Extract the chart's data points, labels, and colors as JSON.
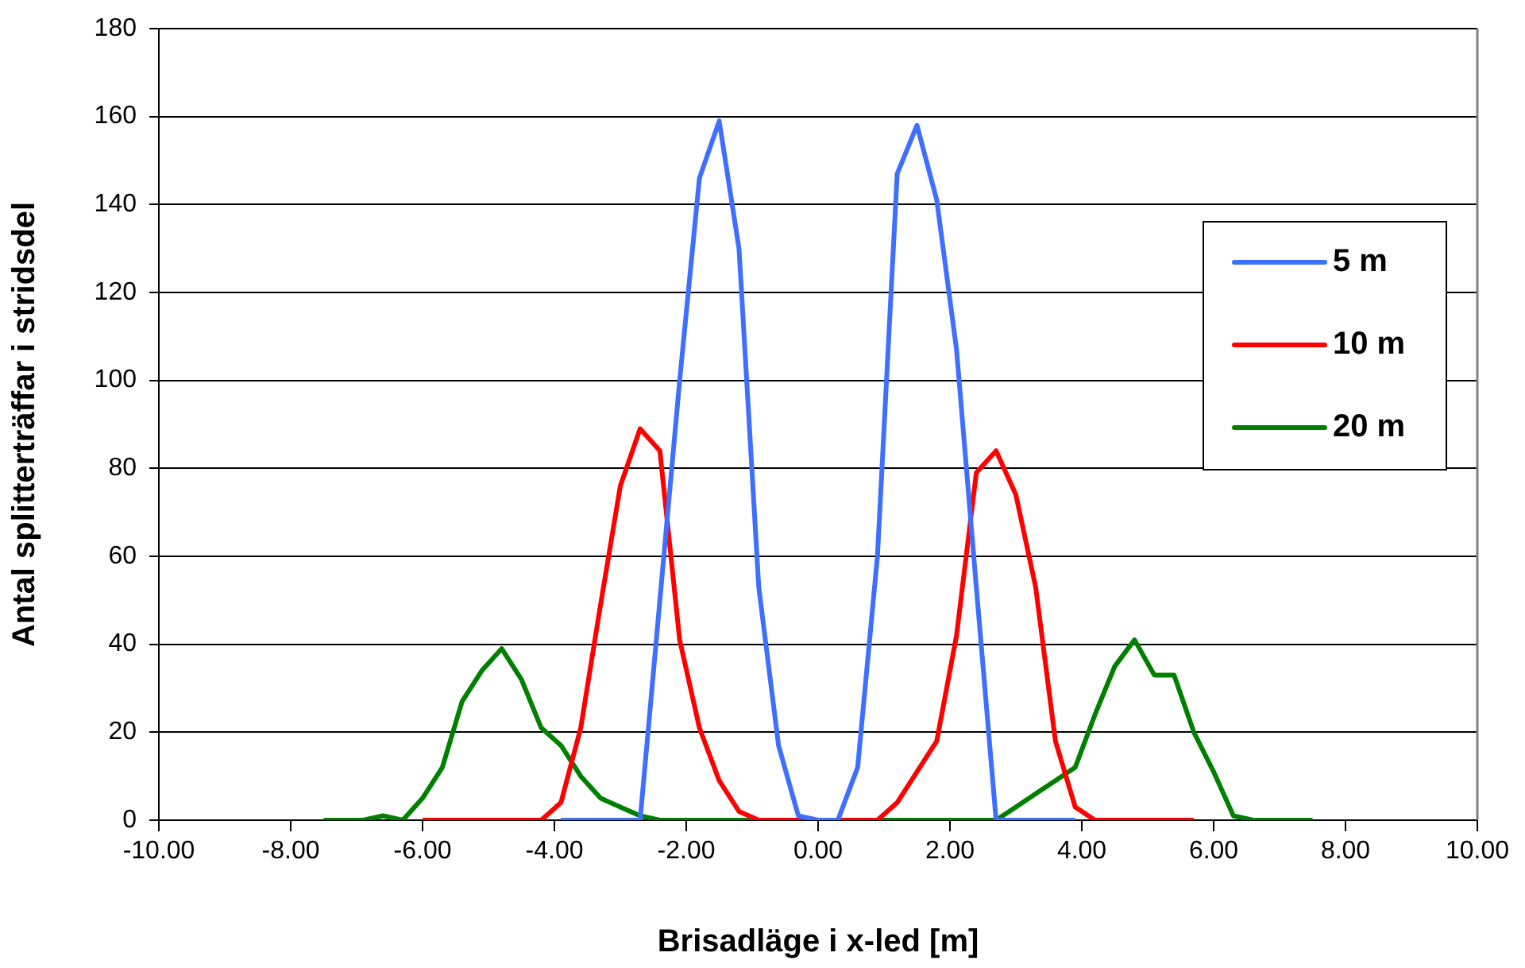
{
  "chart_data": {
    "type": "line",
    "xlabel": "Brisadläge i x-led [m]",
    "ylabel": "Antal splitterträffar i stridsdel",
    "xlim": [
      -10,
      10
    ],
    "xticks": [
      {
        "value": -10,
        "label": "-10.00"
      },
      {
        "value": -8,
        "label": "-8.00"
      },
      {
        "value": -6,
        "label": "-6.00"
      },
      {
        "value": -4,
        "label": "-4.00"
      },
      {
        "value": -2,
        "label": "-2.00"
      },
      {
        "value": 0,
        "label": "0.00"
      },
      {
        "value": 2,
        "label": "2.00"
      },
      {
        "value": 4,
        "label": "4.00"
      },
      {
        "value": 6,
        "label": "6.00"
      },
      {
        "value": 8,
        "label": "8.00"
      },
      {
        "value": 10,
        "label": "10.00"
      }
    ],
    "ylim": [
      0,
      180
    ],
    "yticks": [
      0,
      20,
      40,
      60,
      80,
      100,
      120,
      140,
      160,
      180
    ],
    "grid": "y",
    "legend": "right",
    "marker": "none",
    "line_style": "solid",
    "series": [
      {
        "name": "5 m",
        "color": "#3f6fff",
        "x": [
          -3.9,
          -3.6,
          -3.3,
          -3.0,
          -2.7,
          -2.4,
          -2.1,
          -1.8,
          -1.5,
          -1.2,
          -0.9,
          -0.6,
          -0.3,
          0,
          0.3,
          0.6,
          0.9,
          1.2,
          1.5,
          1.8,
          2.1,
          2.4,
          2.7,
          3.0,
          3.3,
          3.6,
          3.9
        ],
        "values": [
          0,
          0,
          0,
          0,
          0,
          50,
          100,
          146,
          159,
          130,
          53,
          17,
          1,
          0,
          0,
          12,
          60,
          147,
          158,
          141,
          107,
          53,
          0,
          0,
          0,
          0,
          0
        ]
      },
      {
        "name": "10 m",
        "color": "#ff0000",
        "x": [
          -6.0,
          -5.7,
          -5.4,
          -5.1,
          -4.8,
          -4.5,
          -4.2,
          -3.9,
          -3.6,
          -3.3,
          -3.0,
          -2.7,
          -2.4,
          -2.1,
          -1.8,
          -1.5,
          -1.2,
          -0.9,
          -0.6,
          -0.3,
          0,
          0.3,
          0.6,
          0.9,
          1.2,
          1.5,
          1.8,
          2.1,
          2.4,
          2.7,
          3.0,
          3.3,
          3.6,
          3.9,
          4.2,
          4.5,
          4.8,
          5.1,
          5.4,
          5.7
        ],
        "values": [
          0,
          0,
          0,
          0,
          0,
          0,
          0,
          4,
          21,
          49,
          76,
          89,
          84,
          41,
          21,
          9,
          2,
          0,
          0,
          0,
          0,
          0,
          0,
          0,
          4,
          11,
          18,
          42,
          79,
          84,
          74,
          53,
          18,
          3,
          0,
          0,
          0,
          0,
          0,
          0
        ]
      },
      {
        "name": "20 m",
        "color": "#008000",
        "x": [
          -7.5,
          -7.2,
          -6.9,
          -6.6,
          -6.3,
          -6.0,
          -5.7,
          -5.4,
          -5.1,
          -4.8,
          -4.5,
          -4.2,
          -3.9,
          -3.6,
          -3.3,
          -3.0,
          -2.7,
          -2.4,
          -2.1,
          -1.8,
          -1.5,
          -1.2,
          -0.9,
          -0.6,
          -0.3,
          0,
          0.3,
          0.6,
          0.9,
          1.2,
          1.5,
          1.8,
          2.1,
          2.4,
          2.7,
          3.0,
          3.3,
          3.6,
          3.9,
          4.2,
          4.5,
          4.8,
          5.1,
          5.4,
          5.7,
          6.0,
          6.3,
          6.6,
          6.9,
          7.2,
          7.5
        ],
        "values": [
          0,
          0,
          0,
          1,
          0,
          5,
          12,
          27,
          34,
          39,
          32,
          21,
          17,
          10,
          5,
          3,
          1,
          0,
          0,
          0,
          0,
          0,
          0,
          0,
          0,
          0,
          0,
          0,
          0,
          0,
          0,
          0,
          0,
          0,
          0,
          3,
          6,
          9,
          12,
          24,
          35,
          41,
          33,
          33,
          20,
          11,
          1,
          0,
          0,
          0,
          0
        ]
      }
    ]
  }
}
